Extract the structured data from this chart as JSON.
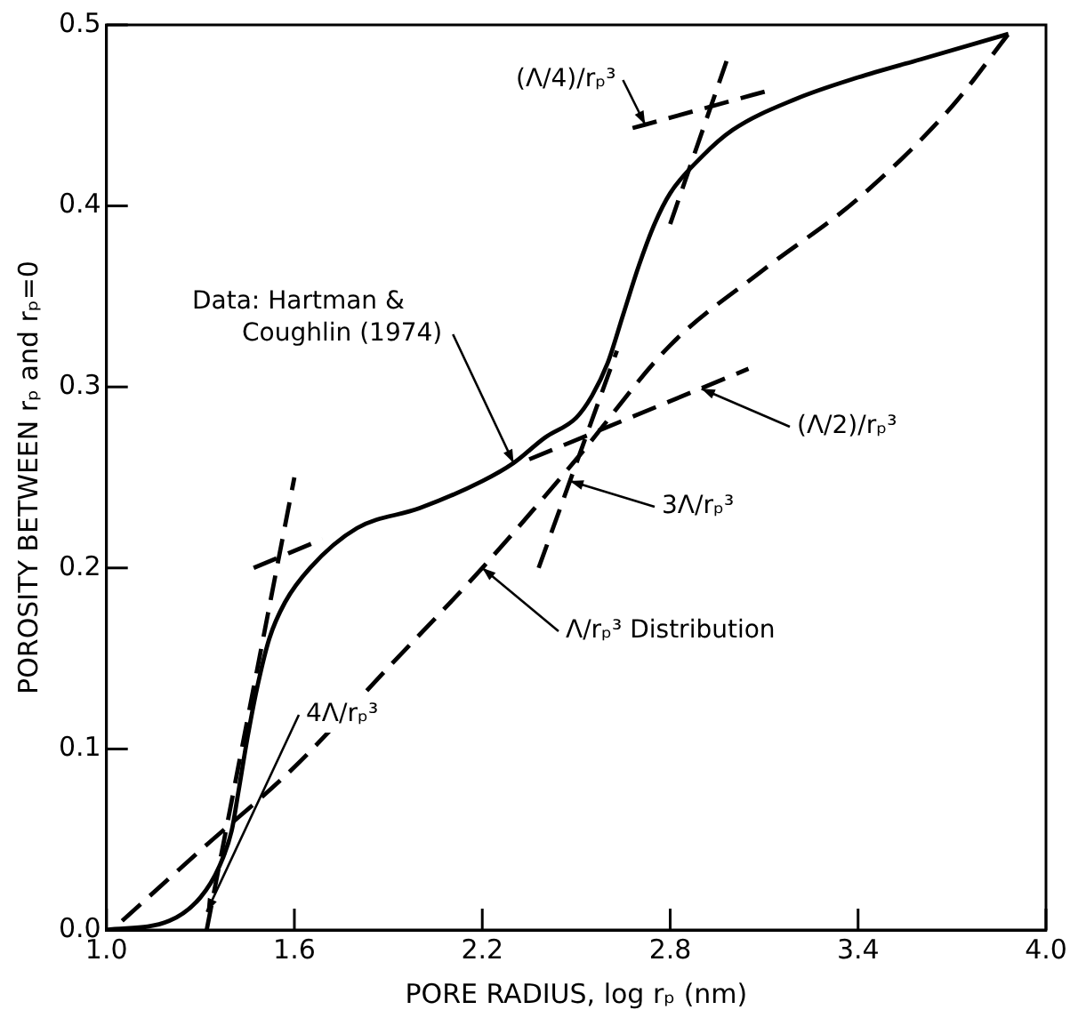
{
  "chart_data": {
    "type": "line",
    "xlabel": "PORE RADIUS, log rₚ (nm)",
    "ylabel": "POROSITY BETWEEN rₚ and rₚ=0",
    "xlim": [
      1.0,
      4.0
    ],
    "xticks": [
      {
        "value": 1,
        "label": "1.0"
      },
      1.6,
      2.2,
      2.8,
      3.4,
      {
        "value": 4,
        "label": "4.0"
      }
    ],
    "ylim": [
      0,
      0.5
    ],
    "yticks": [
      {
        "value": 0,
        "label": "0.0"
      },
      0.1,
      0.2,
      0.3,
      0.4,
      0.5
    ],
    "grid": false,
    "legend": false,
    "marker": "none",
    "series": [
      {
        "color": "#000000",
        "line_style": "solid",
        "x": [
          1.0,
          1.2,
          1.3,
          1.36,
          1.4,
          1.42,
          1.45,
          1.48,
          1.52,
          1.57,
          1.65,
          1.8,
          2.0,
          2.2,
          2.3,
          2.4,
          2.5,
          2.55,
          2.6,
          2.65,
          2.7,
          2.75,
          2.8,
          2.9,
          3.0,
          3.2,
          3.4,
          3.6,
          3.88
        ],
        "values": [
          0.0,
          0.005,
          0.018,
          0.035,
          0.055,
          0.075,
          0.106,
          0.133,
          0.161,
          0.181,
          0.2,
          0.222,
          0.233,
          0.248,
          0.258,
          0.272,
          0.283,
          0.295,
          0.313,
          0.34,
          0.367,
          0.39,
          0.407,
          0.427,
          0.442,
          0.459,
          0.471,
          0.481,
          0.495
        ]
      },
      {
        "color": "#000000",
        "line_style": "dashed",
        "x": [
          1.05,
          1.3,
          1.6,
          1.9,
          2.2,
          2.5,
          2.8,
          3.1,
          3.4,
          3.7,
          3.88
        ],
        "values": [
          0.005,
          0.044,
          0.09,
          0.145,
          0.2,
          0.26,
          0.323,
          0.365,
          0.404,
          0.455,
          0.495
        ]
      },
      {
        "color": "#000000",
        "line_style": "dashed",
        "x": [
          1.32,
          1.6
        ],
        "values": [
          0.0,
          0.25
        ]
      },
      {
        "color": "#000000",
        "line_style": "dashed",
        "x": [
          1.47,
          1.69
        ],
        "values": [
          0.2,
          0.216
        ]
      },
      {
        "color": "#000000",
        "line_style": "dashed",
        "x": [
          2.38,
          2.63
        ],
        "values": [
          0.2,
          0.32
        ]
      },
      {
        "color": "#000000",
        "line_style": "dashed",
        "x": [
          2.35,
          3.05
        ],
        "values": [
          0.26,
          0.31
        ]
      },
      {
        "color": "#000000",
        "line_style": "dashed",
        "x": [
          2.68,
          3.12
        ],
        "values": [
          0.443,
          0.464
        ]
      },
      {
        "color": "#000000",
        "line_style": "dashed",
        "x": [
          2.8,
          2.98
        ],
        "values": [
          0.39,
          0.48
        ]
      }
    ],
    "annotations": [
      {
        "text": "Data: Hartman & Coughlin (1974)",
        "x": 2.3,
        "y": 0.258
      },
      {
        "text": "(Λ/4)/rₚ³",
        "x": 2.72,
        "y": 0.445
      },
      {
        "text": "(Λ/2)/rₚ³",
        "x": 2.9,
        "y": 0.299
      },
      {
        "text": "3Λ/rₚ³",
        "x": 2.48,
        "y": 0.248
      },
      {
        "text": "Λ/rₚ³ Distribution",
        "x": 2.2,
        "y": 0.2
      },
      {
        "text": "4Λ/rₚ³",
        "x": 1.32,
        "y": 0.01
      }
    ]
  }
}
